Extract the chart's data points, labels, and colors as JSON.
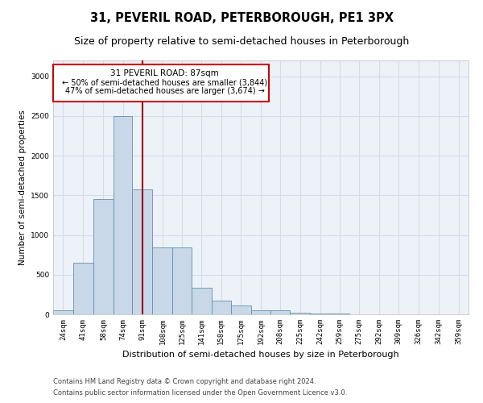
{
  "title": "31, PEVERIL ROAD, PETERBOROUGH, PE1 3PX",
  "subtitle": "Size of property relative to semi-detached houses in Peterborough",
  "xlabel": "Distribution of semi-detached houses by size in Peterborough",
  "ylabel": "Number of semi-detached properties",
  "footer_line1": "Contains HM Land Registry data © Crown copyright and database right 2024.",
  "footer_line2": "Contains public sector information licensed under the Open Government Licence v3.0.",
  "property_label": "31 PEVERIL ROAD: 87sqm",
  "annotation_line1": "← 50% of semi-detached houses are smaller (3,844)",
  "annotation_line2": "47% of semi-detached houses are larger (3,674) →",
  "bar_color": "#c8d8e8",
  "bar_edge_color": "#6090b0",
  "vline_color": "#990000",
  "vline_x": 91,
  "categories": [
    "24sqm",
    "41sqm",
    "58sqm",
    "74sqm",
    "91sqm",
    "108sqm",
    "125sqm",
    "141sqm",
    "158sqm",
    "175sqm",
    "192sqm",
    "208sqm",
    "225sqm",
    "242sqm",
    "259sqm",
    "275sqm",
    "292sqm",
    "309sqm",
    "326sqm",
    "342sqm",
    "359sqm"
  ],
  "bin_edges": [
    15.5,
    32.5,
    49.5,
    66.5,
    82.5,
    99.5,
    116.5,
    132.5,
    149.5,
    165.5,
    182.5,
    199.5,
    215.5,
    232.5,
    249.5,
    265.5,
    282.5,
    299.5,
    315.5,
    332.5,
    349.5,
    366.5
  ],
  "values": [
    50,
    650,
    1450,
    2500,
    1570,
    840,
    840,
    340,
    175,
    110,
    55,
    55,
    20,
    15,
    10,
    5,
    3,
    2,
    1,
    1,
    0
  ],
  "ylim": [
    0,
    3200
  ],
  "yticks": [
    0,
    500,
    1000,
    1500,
    2000,
    2500,
    3000
  ],
  "grid_color": "#d4dce8",
  "background_color": "#edf2f8",
  "annotation_box_color": "#ffffff",
  "annotation_box_edge": "#cc0000",
  "title_fontsize": 10.5,
  "subtitle_fontsize": 9,
  "axis_label_fontsize": 7.5,
  "tick_fontsize": 6.5,
  "annotation_fontsize": 7.5,
  "footer_fontsize": 6
}
